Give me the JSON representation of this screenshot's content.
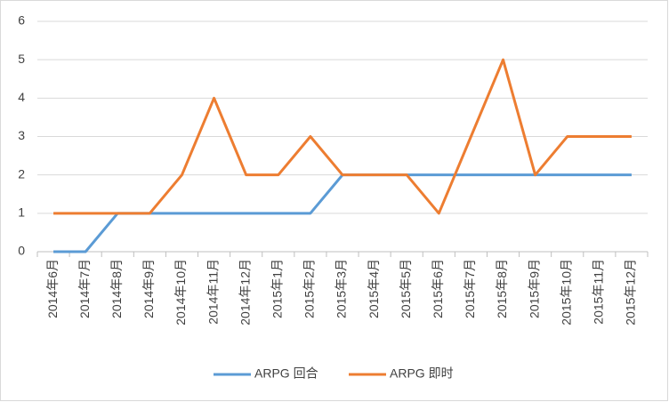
{
  "chart_data": {
    "type": "line",
    "categories": [
      "2014年6月",
      "2014年7月",
      "2014年8月",
      "2014年9月",
      "2014年10月",
      "2014年11月",
      "2014年12月",
      "2015年1月",
      "2015年2月",
      "2015年3月",
      "2015年4月",
      "2015年5月",
      "2015年6月",
      "2015年7月",
      "2015年8月",
      "2015年9月",
      "2015年10月",
      "2015年11月",
      "2015年12月"
    ],
    "series": [
      {
        "name": "ARPG 回合",
        "color": "#5b9bd5",
        "values": [
          0,
          0,
          1,
          1,
          1,
          1,
          1,
          1,
          1,
          2,
          2,
          2,
          2,
          2,
          2,
          2,
          2,
          2,
          2
        ]
      },
      {
        "name": "ARPG 即时",
        "color": "#ed7d31",
        "values": [
          1,
          1,
          1,
          1,
          2,
          4,
          2,
          2,
          3,
          2,
          2,
          2,
          1,
          3,
          5,
          2,
          3,
          3,
          3
        ]
      }
    ],
    "ylim": [
      0,
      6
    ],
    "yticks": [
      0,
      1,
      2,
      3,
      4,
      5,
      6
    ],
    "grid": true,
    "legend": "bottom"
  }
}
